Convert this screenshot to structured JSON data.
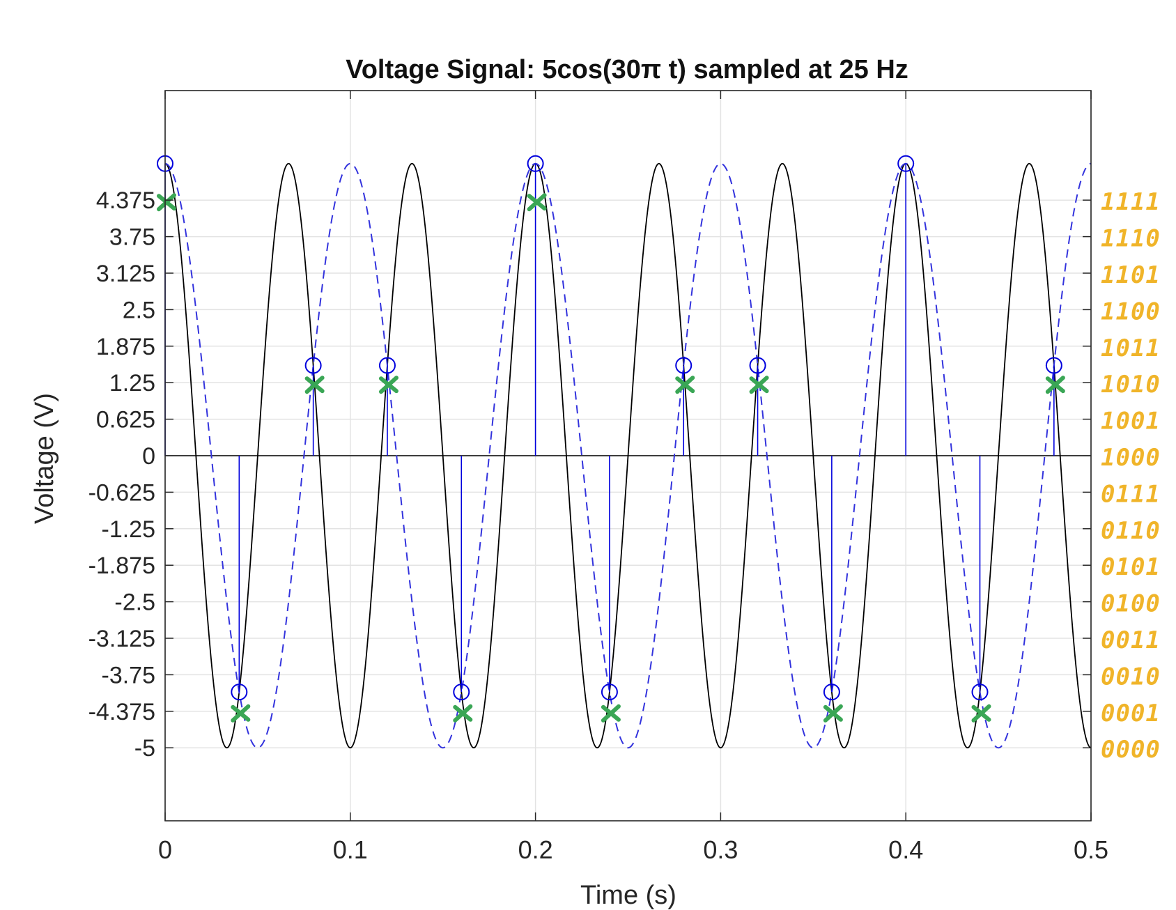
{
  "chart_data": {
    "type": "line",
    "title": "Voltage Signal: 5cos(30π t) sampled at 25 Hz",
    "xlabel": "Time (s)",
    "ylabel": "Voltage (V)",
    "xlim": [
      0,
      0.5
    ],
    "ylim": [
      -6.25,
      6.25
    ],
    "grid": true,
    "x_ticks": [
      0,
      0.1,
      0.2,
      0.3,
      0.4,
      0.5
    ],
    "x_tick_labels": [
      "0",
      "0.1",
      "0.2",
      "0.3",
      "0.4",
      "0.5"
    ],
    "y_ticks": [
      -5,
      -4.375,
      -3.75,
      -3.125,
      -2.5,
      -1.875,
      -1.25,
      -0.625,
      0,
      0.625,
      1.25,
      1.875,
      2.5,
      3.125,
      3.75,
      4.375
    ],
    "y_tick_labels": [
      "-5",
      "-4.375",
      "-3.75",
      "-3.125",
      "-2.5",
      "-1.875",
      "-1.25",
      "-0.625",
      "0",
      "0.625",
      "1.25",
      "1.875",
      "2.5",
      "3.125",
      "3.75",
      "4.375"
    ],
    "series": [
      {
        "style": "solid-black",
        "color": "#000000",
        "amplitude": 5,
        "frequency_hz": 15,
        "function": "cos"
      },
      {
        "style": "dashed-blue",
        "color": "#3333dd",
        "amplitude": 5,
        "frequency_hz": 10,
        "function": "cos"
      },
      {
        "style": "stem-blue-circle",
        "color": "#0000dd",
        "x": [
          0,
          0.04,
          0.08,
          0.12,
          0.16,
          0.2,
          0.24,
          0.28,
          0.32,
          0.36,
          0.4,
          0.44,
          0.48
        ],
        "y": [
          5,
          -4.045,
          1.545,
          1.545,
          -4.045,
          5,
          -4.045,
          1.545,
          1.545,
          -4.045,
          5,
          -4.045,
          1.545
        ]
      },
      {
        "style": "green-x-quantized",
        "color": "#3aa655",
        "x": [
          0,
          0.04,
          0.08,
          0.12,
          0.16,
          0.2,
          0.24,
          0.28,
          0.32,
          0.36,
          0.4,
          0.44,
          0.48
        ],
        "y": [
          4.375,
          -4.375,
          1.25,
          1.25,
          -4.375,
          4.375,
          -4.375,
          1.25,
          1.25,
          -4.375,
          null,
          -4.375,
          1.25
        ]
      }
    ],
    "annotations": {
      "color": "#f0b429",
      "levels": [
        4.375,
        3.75,
        3.125,
        2.5,
        1.875,
        1.25,
        0.625,
        0,
        -0.625,
        -1.25,
        -1.875,
        -2.5,
        -3.125,
        -3.75,
        -4.375,
        -5
      ],
      "codes": [
        "1111",
        "1110",
        "1101",
        "1100",
        "1011",
        "1010",
        "1001",
        "1000",
        "0111",
        "0110",
        "0101",
        "0100",
        "0011",
        "0010",
        "0001",
        "0000"
      ]
    }
  }
}
